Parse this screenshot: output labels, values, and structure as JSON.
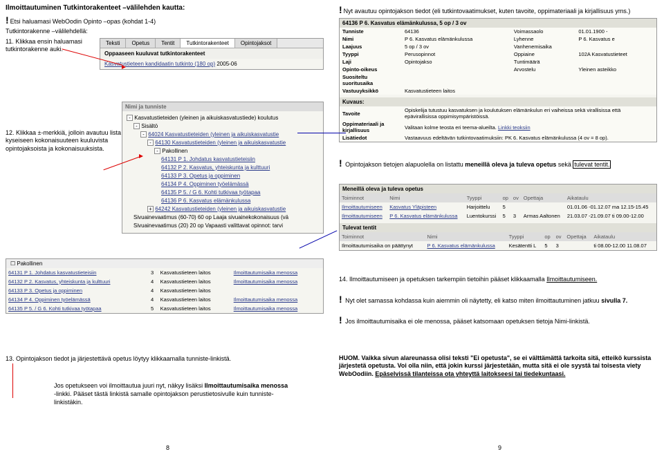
{
  "left": {
    "title": "Ilmoittautuminen Tutkintorakenteet –välilehden kautta:",
    "intro": "Etsi haluamasi WebOodin Opinto –opas (kohdat 1-4)",
    "sub": "Tutkintorakenne –välilehdellä:",
    "step11": "11. Klikkaa ensin haluamasi tutkintorakenne auki.",
    "step12": "12. Klikkaa ±-merkkiä, jolloin avautuu lista kyseiseen kokonaisuuteen kuuluvista opintojaksoista ja kokonaisuuksista.",
    "step13": "13. Opintojakson tiedot ja järjestettävä opetus löytyy klikkaamalla tunniste-linkistä.",
    "note": "Jos opetukseen voi ilmoittautua juuri nyt, näkyy lisäksi Ilmoittautumisaika menossa -linkki. Pääset tästä linkistä samalle opintojakson perustietosivulle kuin tunniste-linkistäkin.",
    "tabs": [
      "Teksti",
      "Opetus",
      "Tentit",
      "Tutkintorakenteet",
      "Opintojaksot"
    ],
    "subhead": "Oppaaseen kuuluvat tutkintorakenteet",
    "degree": "Kasvatustieteen kandidaatin tutkinto (180 op)",
    "degree_year": "2005-06",
    "tree_header": "Nimi ja tunniste",
    "tree": [
      {
        "glyph": "-",
        "text": "Kasvatustieteiden (yleinen ja aikuiskasvatustiede) koulutus",
        "link": false,
        "indent": 0
      },
      {
        "glyph": "-",
        "text": "Sisältö",
        "link": false,
        "indent": 1
      },
      {
        "glyph": "-",
        "text": "64024 Kasvatustieteiden (yleinen ja aikuiskasvatustie",
        "link": true,
        "indent": 2
      },
      {
        "glyph": "-",
        "text": "64130 Kasvatustieteiden (yleinen ja aikuiskasvatustie",
        "link": true,
        "indent": 3
      },
      {
        "glyph": "-",
        "text": "Pakollinen",
        "link": false,
        "indent": 4
      },
      {
        "glyph": "",
        "text": "64131 P 1. Johdatus kasvatustieteisiin",
        "link": true,
        "indent": 5
      },
      {
        "glyph": "",
        "text": "64132 P 2. Kasvatus, yhteiskunta ja kulttuuri",
        "link": true,
        "indent": 5
      },
      {
        "glyph": "",
        "text": "64133 P 3. Opetus ja oppiminen",
        "link": true,
        "indent": 5
      },
      {
        "glyph": "",
        "text": "64134 P 4. Oppiminen työelämässä",
        "link": true,
        "indent": 5
      },
      {
        "glyph": "",
        "text": "64135 P 5. / G 6. Kohti tutkivaa työtapaa",
        "link": true,
        "indent": 5
      },
      {
        "glyph": "",
        "text": "64136 P 6. Kasvatus elämänkulussa",
        "link": true,
        "indent": 5
      },
      {
        "glyph": "+",
        "text": "64242 Kasvatustieteiden (yleinen ja aikuiskasvatustie",
        "link": true,
        "indent": 3
      },
      {
        "glyph": "",
        "text": "Sivuainevaatimus (60-70) 60 op Laaja sivuainekokonaisuus (vä",
        "link": false,
        "indent": 1
      },
      {
        "glyph": "",
        "text": "Sivuainevaatimus (20) 20 op Vapaasti valittavat opinnot: tarvi",
        "link": false,
        "indent": 1
      }
    ],
    "detail_table": {
      "cols": [
        "",
        "",
        "",
        ""
      ],
      "rows": [
        [
          "64131 P 1. Johdatus kasvatustieteisiin",
          "3",
          "Kasvatustieteen laitos",
          "Ilmoittautumisaika menossa"
        ],
        [
          "64132 P 2. Kasvatus, yhteiskunta ja kulttuuri",
          "4",
          "Kasvatustieteen laitos",
          "Ilmoittautumisaika menossa"
        ],
        [
          "64133 P 3. Opetus ja oppiminen",
          "4",
          "Kasvatustieteen laitos",
          ""
        ],
        [
          "64134 P 4. Oppiminen työelämässä",
          "4",
          "Kasvatustieteen laitos",
          "Ilmoittautumisaika menossa"
        ],
        [
          "64135 P 5. / G 6. Kohti tutkivaa työtapaa",
          "5",
          "Kasvatustieteen laitos",
          "Ilmoittautumisaika menossa"
        ]
      ]
    }
  },
  "right": {
    "intro": "Nyt avautuu opintojakson tiedot (eli tutkintovaatimukset, kuten tavoite, oppimateriaali ja kirjallisuus yms.)",
    "course_header": "64136 P 6. Kasvatus elämänkulussa, 5 op / 3 ov",
    "info": {
      "Tunniste": "64136",
      "Voimassaolo": "01.01.1900 -",
      "Nimi": "P 6. Kasvatus elämänkulussa",
      "Lyhenne": "P 6. Kasvatus e",
      "Laajuus": "5 op / 3 ov",
      "Vanhenemisaika": "",
      "Tyyppi": "Perusopinnot",
      "Oppiaine": "102A Kasvatustieteet",
      "Laji": "Opintojakso",
      "Tuntimäärä": "",
      "Opinto-oikeus": "",
      "Arvostelu": "Yleinen asteikko",
      "Suositeltu suoritusaika": "",
      "": "",
      "Vastuuyksikkö": "Kasvatustieteen laitos"
    },
    "desc": {
      "Kuvaus:": "",
      "Tavoite": "Opiskelija tutustuu kasvatuksen ja koulutuksen elämänkulun eri vaiheissa sekä virallisissa että epävirallisissa oppimisympäristöissä.",
      "Oppimateriaali ja kirjallisuus": "Valitaan kolme teosta eri teema-alueilta.\nLinkki teoksiin",
      "Lisätiedot": "Vastaavuus edeltävän tutkintovaatimuksiin: PK 6. Kasvatus elämänkulussa (4 ov = 8 op)."
    },
    "mid_text": "Opintojakson tietojen alapuolella on listattu meneillä oleva ja tuleva opetus sekä tulevat tentit.",
    "ongoing_header": "Meneillä oleva ja tuleva opetus",
    "ongoing_cols": [
      "Toiminnot",
      "Nimi",
      "Tyyppi",
      "op",
      "ov",
      "Opettaja",
      "Aikataulu"
    ],
    "ongoing_rows": [
      [
        "Ilmoittautumiseen",
        "Kasvatus Yläpisteen",
        "Harjoittelu",
        "5",
        "",
        "",
        "01.01.06 -01.12.07  ma 12.15-15.45"
      ],
      [
        "Ilmoittautumiseen",
        "P 6. Kasvatus elämänkulussa",
        "Luentokurssi",
        "5",
        "3",
        "Armas Aaltonen",
        "21.03.07 -21.09.07  ti 09.00-12.00"
      ]
    ],
    "exams_header": "Tulevat tentit",
    "exams_cols": [
      "Toiminnot",
      "Nimi",
      "Tyyppi",
      "op",
      "ov",
      "Opettaja",
      "Aikataulu"
    ],
    "exams_rows": [
      [
        "Ilmoittautumisaika on päättynyt",
        "P 6. Kasvatus elämänkulussa",
        "Kesätentti L",
        "5",
        "3",
        "",
        "ti 08.00-12.00  11.08.07"
      ]
    ],
    "step14": "14. Ilmoittautumiseen ja opetuksen tarkempiin tietoihin pääset klikkaamalla Ilmoittautumiseen.",
    "bang2": "Nyt olet samassa kohdassa kuin aiemmin oli näytetty, eli katso miten ilmoittautuminen jatkuu sivulla 7.",
    "bang3": "Jos ilmoittautumisaika ei ole menossa, pääset katsomaan opetuksen tietoja Nimi-linkistä.",
    "huom": "HUOM. Vaikka sivun alareunassa olisi teksti \"Ei opetusta\", se ei välttämättä tarkoita sitä, etteikö kurssista järjestetä opetusta. Voi olla niin, että jokin kurssi järjestetään, mutta sitä ei ole syystä tai toisesta viety WebOodiin. Epäselvissä tilanteissa ota yhteyttä laitokseesi tai tiedekuntaasi."
  },
  "pagenum_left": "8",
  "pagenum_right": "9"
}
